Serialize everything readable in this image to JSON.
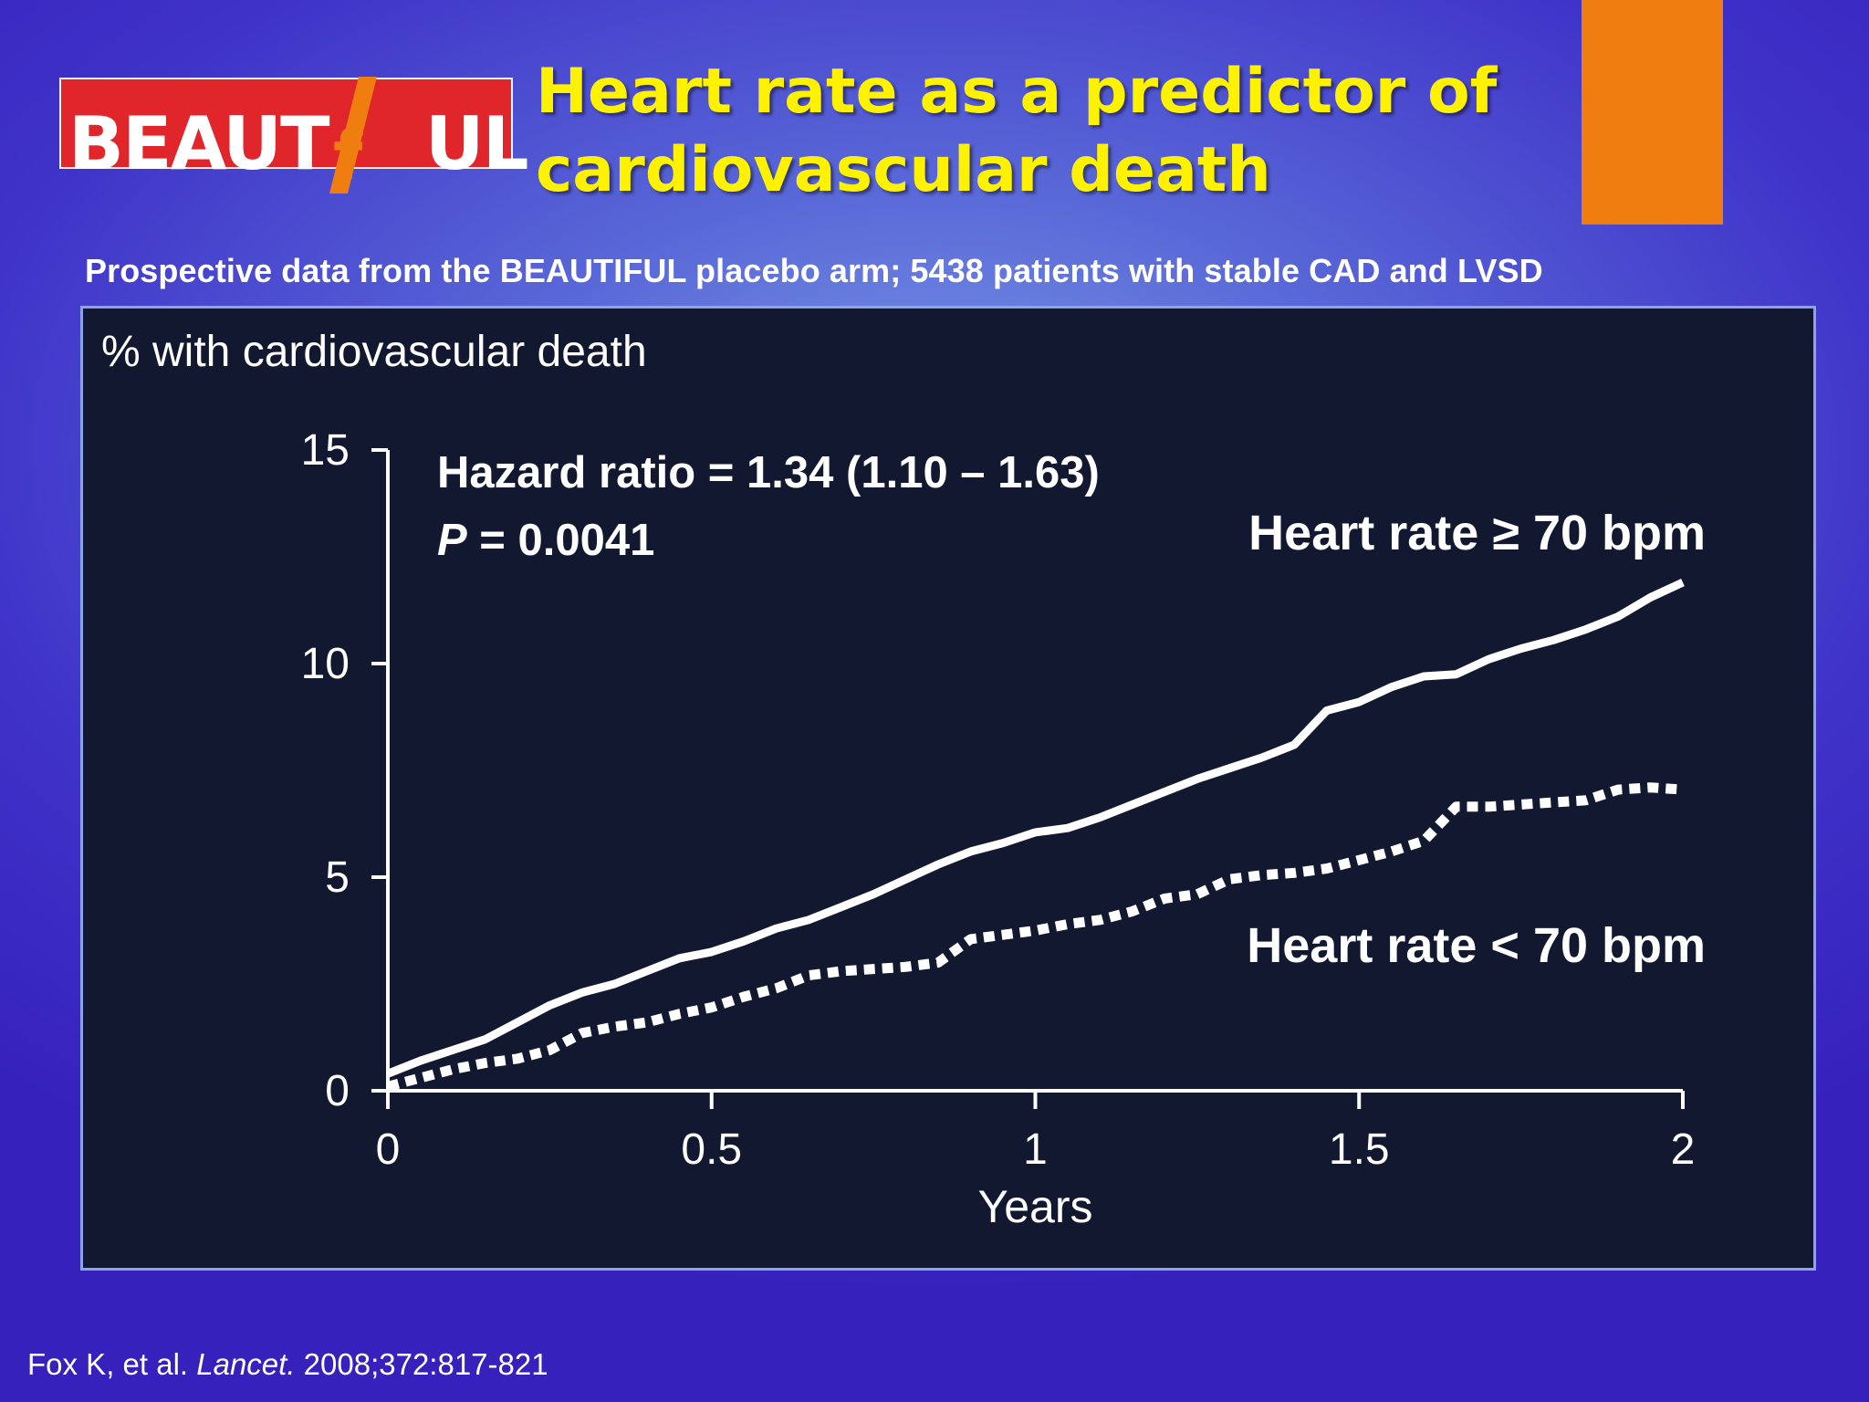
{
  "logo": {
    "text_left": "BEAUT",
    "letter_i": "I",
    "letter_f": "f",
    "text_right": "UL"
  },
  "title": {
    "line1": "Heart rate as a predictor of",
    "line2": "cardiovascular death"
  },
  "subtitle": "Prospective data from the BEAUTIFUL placebo arm; 5438 patients with stable CAD and LVSD",
  "colors": {
    "title": "#fff200",
    "logo_red": "#e0262b",
    "orange_block": "#f07d10",
    "panel_bg": "#121830",
    "line": "#ffffff"
  },
  "stats": {
    "hazard_ratio": "Hazard ratio = 1.34 (1.10 – 1.63)",
    "p_label": "P",
    "p_value": " = 0.0041"
  },
  "citation": {
    "authors": "Fox K, et al. ",
    "journal": "Lancet.",
    "ref": " 2008;372:817-821"
  },
  "chart_data": {
    "type": "line",
    "ylabel": "% with cardiovascular death",
    "xlabel": "Years",
    "xlim": [
      0,
      2
    ],
    "ylim": [
      0,
      15
    ],
    "x_ticks": [
      "0",
      "0.5",
      "1",
      "1.5",
      "2"
    ],
    "y_ticks": [
      "0",
      "5",
      "10",
      "15"
    ],
    "grid": false,
    "series": [
      {
        "name": "Heart rate ≥ 70 bpm",
        "style": "solid",
        "x": [
          0,
          0.05,
          0.1,
          0.15,
          0.2,
          0.25,
          0.3,
          0.35,
          0.4,
          0.45,
          0.5,
          0.55,
          0.6,
          0.65,
          0.7,
          0.75,
          0.8,
          0.85,
          0.9,
          0.95,
          1.0,
          1.05,
          1.1,
          1.15,
          1.2,
          1.25,
          1.3,
          1.35,
          1.4,
          1.45,
          1.5,
          1.55,
          1.6,
          1.65,
          1.7,
          1.75,
          1.8,
          1.85,
          1.9,
          1.95,
          2.0
        ],
        "values": [
          0.4,
          0.7,
          0.95,
          1.2,
          1.6,
          2.0,
          2.3,
          2.5,
          2.8,
          3.1,
          3.25,
          3.5,
          3.8,
          4.0,
          4.3,
          4.6,
          4.95,
          5.3,
          5.6,
          5.8,
          6.05,
          6.15,
          6.4,
          6.7,
          7.0,
          7.3,
          7.55,
          7.8,
          8.1,
          8.9,
          9.1,
          9.45,
          9.7,
          9.75,
          10.1,
          10.35,
          10.55,
          10.8,
          11.1,
          11.55,
          11.9
        ]
      },
      {
        "name": "Heart rate < 70 bpm",
        "style": "dotted",
        "x": [
          0,
          0.05,
          0.1,
          0.15,
          0.2,
          0.25,
          0.3,
          0.35,
          0.4,
          0.45,
          0.5,
          0.55,
          0.6,
          0.65,
          0.7,
          0.75,
          0.8,
          0.85,
          0.9,
          0.95,
          1.0,
          1.05,
          1.1,
          1.15,
          1.2,
          1.25,
          1.3,
          1.35,
          1.4,
          1.45,
          1.5,
          1.55,
          1.6,
          1.65,
          1.7,
          1.75,
          1.8,
          1.85,
          1.9,
          1.95,
          2.0
        ],
        "values": [
          0.1,
          0.3,
          0.5,
          0.65,
          0.75,
          0.95,
          1.35,
          1.5,
          1.6,
          1.8,
          1.95,
          2.2,
          2.4,
          2.7,
          2.8,
          2.85,
          2.9,
          3.0,
          3.55,
          3.65,
          3.75,
          3.9,
          4.0,
          4.2,
          4.5,
          4.6,
          4.95,
          5.05,
          5.1,
          5.2,
          5.4,
          5.6,
          5.85,
          6.65,
          6.65,
          6.7,
          6.75,
          6.8,
          7.05,
          7.1,
          7.05
        ]
      }
    ]
  }
}
